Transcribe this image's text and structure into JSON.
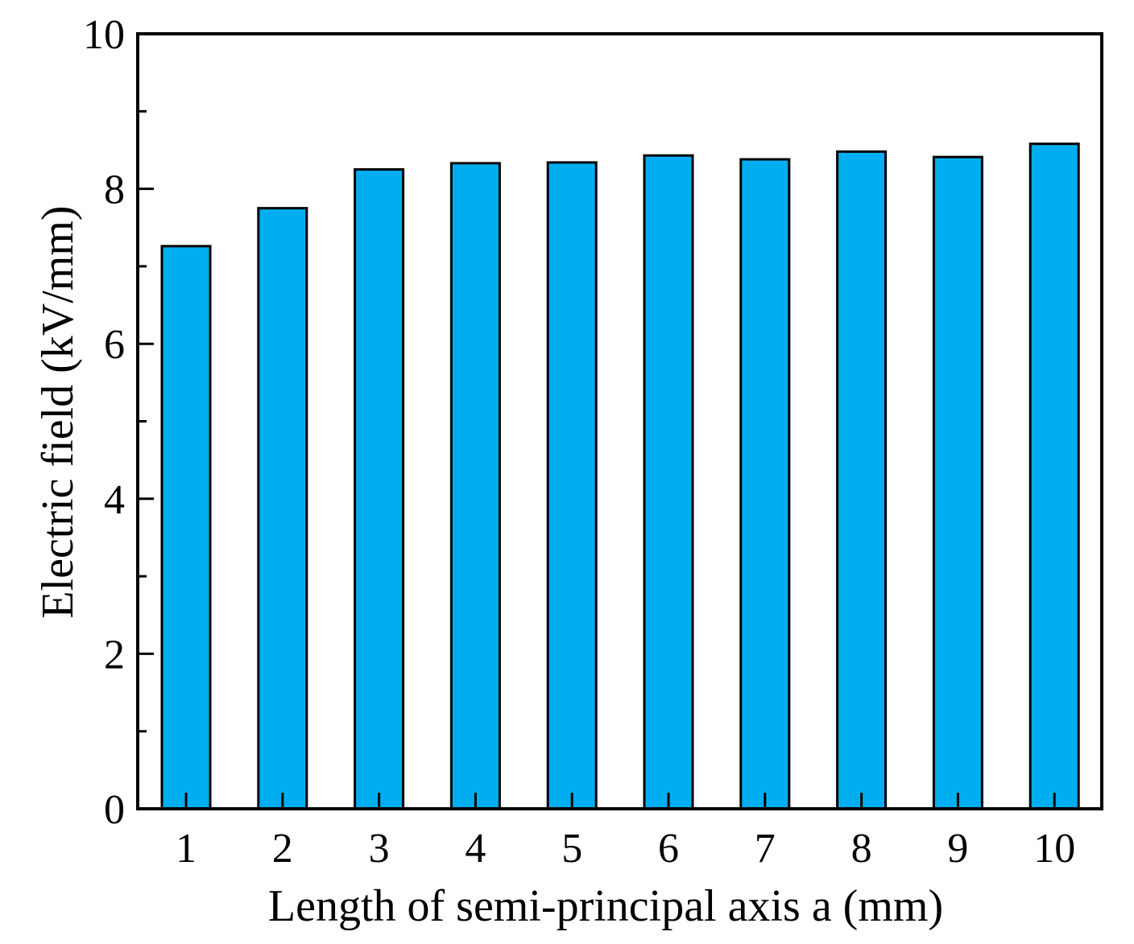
{
  "chart_data": {
    "type": "bar",
    "title": "",
    "xlabel": "Length of  semi-principal axis a (mm)",
    "ylabel": "Electric field (kV/mm)",
    "categories": [
      "1",
      "2",
      "3",
      "4",
      "5",
      "6",
      "7",
      "8",
      "9",
      "10"
    ],
    "values": [
      7.26,
      7.75,
      8.25,
      8.33,
      8.34,
      8.43,
      8.38,
      8.48,
      8.41,
      8.58
    ],
    "ylim": [
      0,
      10
    ],
    "yticks": [
      "0",
      "2",
      "4",
      "6",
      "8",
      "10"
    ],
    "grid": false,
    "legend": "none",
    "colors": {
      "bar_fill": "#00aeef",
      "bar_edge": "#000000",
      "axis": "#000000"
    }
  }
}
